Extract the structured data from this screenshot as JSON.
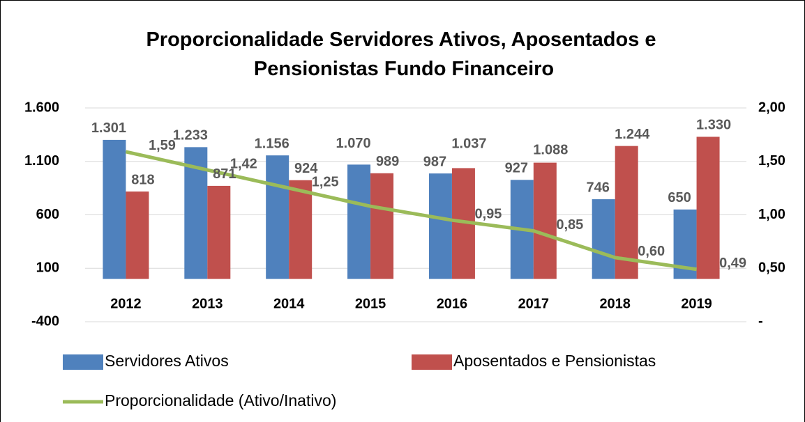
{
  "chart_data": {
    "type": "bar-line",
    "title": "Proporcionalidade Servidores Ativos, Aposentados e Pensionistas Fundo Financeiro",
    "categories": [
      "2012",
      "2013",
      "2014",
      "2015",
      "2016",
      "2017",
      "2018",
      "2019"
    ],
    "series": [
      {
        "name": "Servidores Ativos",
        "type": "bar",
        "color": "#4f81bd",
        "values": [
          1301,
          1233,
          1156,
          1070,
          987,
          927,
          746,
          650
        ],
        "value_labels": [
          "1.301",
          "1.233",
          "1.156",
          "1.070",
          "987",
          "927",
          "746",
          "650"
        ]
      },
      {
        "name": "Aposentados e Pensionistas",
        "type": "bar",
        "color": "#c0504d",
        "values": [
          818,
          871,
          924,
          989,
          1037,
          1088,
          1244,
          1330
        ],
        "value_labels": [
          "818",
          "871",
          "924",
          "989",
          "1.037",
          "1.088",
          "1.244",
          "1.330"
        ]
      },
      {
        "name": "Proporcionalidade (Ativo/Inativo)",
        "type": "line",
        "axis": "y2",
        "color": "#9bbb59",
        "values": [
          1.59,
          1.42,
          1.25,
          1.08,
          0.95,
          0.85,
          0.6,
          0.49
        ],
        "value_labels": [
          "1,59",
          "1,42",
          "1,25",
          null,
          "0,95",
          "0,85",
          "0,60",
          "0,49"
        ]
      }
    ],
    "ylim": [
      -400,
      1600
    ],
    "yticks": [
      -400,
      100,
      600,
      {
        "value": 1100,
        "label": "1.100"
      },
      {
        "value": 1600,
        "label": "1.600"
      }
    ],
    "y2lim": [
      0,
      2
    ],
    "y2ticks": [
      {
        "value": 0,
        "label": "-"
      },
      {
        "value": 0.5,
        "label": "0,50"
      },
      {
        "value": 1,
        "label": "1,00"
      },
      {
        "value": 1.5,
        "label": "1,50"
      },
      {
        "value": 2,
        "label": "2,00"
      }
    ],
    "grid": true
  }
}
